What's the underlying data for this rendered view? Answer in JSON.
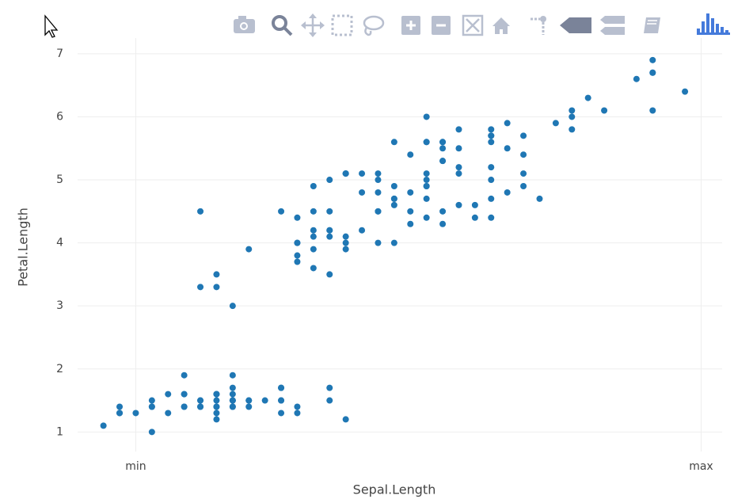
{
  "chart_data": {
    "type": "scatter",
    "x_label": "Sepal.Length",
    "y_label": "Petal.Length",
    "color": "#1f77b4",
    "grid": true,
    "xlim": [
      4.14,
      8.13
    ],
    "ylim": [
      0.69,
      7.25
    ],
    "xticks": [
      {
        "value": 4.5,
        "label": "min"
      },
      {
        "value": 8,
        "label": "max"
      }
    ],
    "yticks": [
      1,
      2,
      3,
      4,
      5,
      6,
      7
    ],
    "x": [
      5.1,
      4.9,
      4.7,
      4.6,
      5.0,
      5.4,
      4.6,
      5.0,
      4.4,
      4.9,
      5.4,
      4.8,
      4.8,
      4.3,
      5.8,
      5.7,
      5.4,
      5.1,
      5.7,
      5.1,
      5.4,
      5.1,
      4.6,
      5.1,
      4.8,
      5.0,
      5.0,
      5.2,
      5.2,
      4.7,
      4.8,
      5.4,
      5.2,
      5.5,
      4.9,
      5.0,
      5.5,
      4.9,
      4.4,
      5.1,
      5.0,
      4.5,
      4.4,
      5.0,
      5.1,
      4.8,
      5.1,
      4.6,
      5.3,
      5.0,
      7.0,
      6.4,
      6.9,
      5.5,
      6.5,
      5.7,
      6.3,
      4.9,
      6.6,
      5.2,
      5.0,
      5.9,
      6.0,
      6.1,
      5.6,
      6.7,
      5.6,
      5.8,
      6.2,
      5.6,
      5.9,
      6.1,
      6.3,
      6.1,
      6.4,
      6.6,
      6.8,
      6.7,
      6.0,
      5.7,
      5.5,
      5.5,
      5.8,
      6.0,
      5.4,
      6.0,
      6.7,
      6.3,
      5.6,
      5.5,
      5.5,
      6.1,
      5.8,
      5.0,
      5.6,
      5.7,
      5.7,
      6.2,
      5.1,
      5.7,
      6.3,
      5.8,
      7.1,
      6.3,
      6.5,
      7.6,
      4.9,
      7.3,
      6.7,
      7.2,
      6.5,
      6.4,
      6.8,
      5.7,
      5.8,
      6.4,
      6.5,
      7.7,
      7.7,
      6.0,
      6.9,
      5.6,
      7.7,
      6.3,
      6.7,
      7.2,
      6.2,
      6.1,
      6.4,
      7.2,
      7.4,
      7.9,
      6.4,
      6.3,
      6.1,
      7.7,
      6.3,
      6.4,
      6.0,
      6.9,
      6.7,
      6.9,
      5.8,
      6.8,
      6.7,
      6.7,
      6.3,
      6.5,
      6.2,
      5.9
    ],
    "values": [
      1.4,
      1.4,
      1.3,
      1.5,
      1.4,
      1.7,
      1.4,
      1.5,
      1.4,
      1.5,
      1.5,
      1.6,
      1.4,
      1.1,
      1.2,
      1.5,
      1.3,
      1.4,
      1.7,
      1.5,
      1.7,
      1.5,
      1.0,
      1.7,
      1.9,
      1.6,
      1.6,
      1.5,
      1.4,
      1.6,
      1.6,
      1.5,
      1.5,
      1.4,
      1.5,
      1.2,
      1.3,
      1.4,
      1.3,
      1.5,
      1.3,
      1.3,
      1.3,
      1.6,
      1.9,
      1.4,
      1.6,
      1.4,
      1.5,
      1.4,
      4.7,
      4.5,
      4.9,
      4.0,
      4.6,
      4.5,
      4.7,
      3.3,
      4.6,
      3.9,
      3.5,
      4.2,
      4.0,
      4.7,
      3.6,
      4.4,
      4.5,
      4.1,
      4.5,
      3.9,
      4.8,
      4.0,
      4.9,
      4.7,
      4.3,
      4.4,
      4.8,
      5.0,
      4.5,
      3.5,
      3.8,
      3.7,
      3.9,
      5.1,
      4.5,
      4.5,
      4.7,
      4.4,
      4.1,
      4.0,
      4.4,
      4.6,
      4.0,
      3.3,
      4.2,
      4.2,
      4.2,
      4.3,
      3.0,
      4.1,
      6.0,
      5.1,
      5.9,
      5.6,
      5.8,
      6.6,
      4.5,
      6.3,
      5.8,
      6.1,
      5.1,
      5.3,
      5.5,
      5.0,
      5.1,
      5.3,
      5.5,
      6.7,
      6.9,
      5.0,
      5.7,
      4.9,
      6.7,
      4.9,
      5.7,
      6.0,
      4.8,
      4.9,
      5.6,
      5.8,
      6.1,
      6.4,
      5.6,
      5.1,
      5.6,
      6.1,
      5.6,
      5.5,
      4.8,
      5.4,
      5.6,
      5.1,
      5.1,
      5.9,
      5.7,
      5.2,
      5.0,
      5.2,
      5.4,
      5.1
    ]
  }
}
